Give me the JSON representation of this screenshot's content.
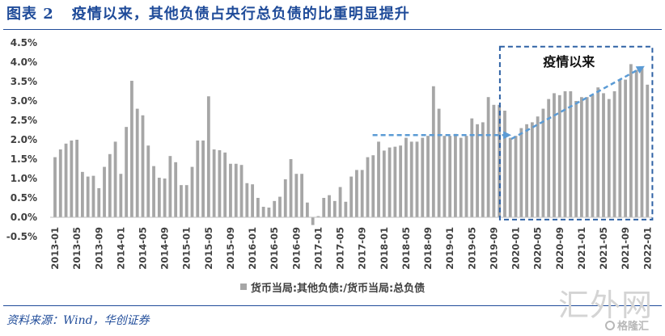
{
  "chart_data": {
    "type": "bar",
    "figure_label": "图表 2",
    "title": "疫情以来，其他负债占央行总负债的比重明显提升",
    "x_ticks": [
      "2013-01",
      "2013-05",
      "2013-09",
      "2014-01",
      "2014-05",
      "2014-09",
      "2015-01",
      "2015-05",
      "2015-09",
      "2016-01",
      "2016-05",
      "2016-09",
      "2017-01",
      "2017-05",
      "2017-09",
      "2018-01",
      "2018-05",
      "2018-09",
      "2019-01",
      "2019-05",
      "2019-09",
      "2020-01",
      "2020-05",
      "2020-09",
      "2021-01",
      "2021-05",
      "2021-09",
      "2022-01"
    ],
    "y_ticks": [
      "4.5%",
      "4.0%",
      "3.5%",
      "3.0%",
      "2.5%",
      "2.0%",
      "1.5%",
      "1.0%",
      "0.5%",
      "0.0%",
      "-0.5%"
    ],
    "ylim": [
      -0.5,
      4.5
    ],
    "grid": false,
    "legend": "bottom-center",
    "series": [
      {
        "name": "货币当局:其他负债:/货币当局:总负债",
        "color": "#a6a6a6",
        "values": [
          1.55,
          1.75,
          1.9,
          1.98,
          2.0,
          1.17,
          1.05,
          1.07,
          0.75,
          1.3,
          1.63,
          1.95,
          1.12,
          2.33,
          3.52,
          2.8,
          2.63,
          1.85,
          1.32,
          1.02,
          1.0,
          1.58,
          1.42,
          0.83,
          0.83,
          1.3,
          1.98,
          1.98,
          3.12,
          1.75,
          1.73,
          1.67,
          1.38,
          1.38,
          1.35,
          0.88,
          0.85,
          0.5,
          0.27,
          0.25,
          0.42,
          0.53,
          0.98,
          1.5,
          1.12,
          1.12,
          0.38,
          -0.2,
          0.03,
          0.5,
          0.57,
          0.42,
          0.78,
          0.4,
          1.05,
          1.22,
          1.22,
          1.55,
          1.6,
          1.95,
          1.72,
          1.8,
          1.82,
          1.85,
          2.05,
          1.95,
          1.95,
          2.05,
          2.1,
          3.38,
          2.8,
          2.1,
          2.1,
          2.15,
          2.05,
          2.1,
          2.55,
          2.4,
          2.45,
          3.1,
          2.9,
          2.9,
          2.75,
          2.05,
          2.1,
          2.3,
          2.4,
          2.45,
          2.6,
          2.8,
          3.05,
          3.2,
          3.15,
          3.25,
          3.25,
          3.0,
          3.1,
          3.1,
          3.15,
          3.35,
          3.2,
          3.05,
          3.25,
          3.55,
          3.55,
          3.95,
          3.8,
          3.85,
          3.42
        ]
      }
    ],
    "annotations": [
      {
        "label": "疫情以来"
      }
    ]
  },
  "source": "资料来源：Wind，华创证券",
  "watermark": {
    "text": "汇外网",
    "logo_text": "格隆汇"
  },
  "colors": {
    "title": "#1f4b99",
    "source": "#1f4b99",
    "axis_text": "#404040",
    "annotation_box": "#2f62a5",
    "arrow": "#5b9bd5"
  }
}
